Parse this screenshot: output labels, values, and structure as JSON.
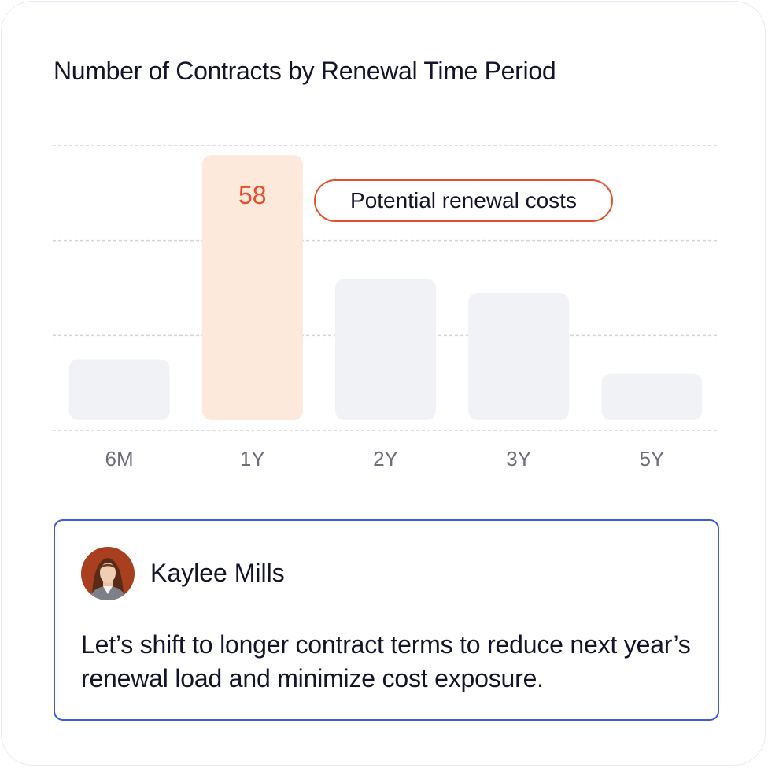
{
  "chart_data": {
    "type": "bar",
    "title": "Number of Contracts by Renewal Time Period",
    "categories": [
      "6M",
      "1Y",
      "2Y",
      "3Y",
      "5Y"
    ],
    "values": [
      15,
      58,
      32,
      29,
      12
    ],
    "data_labels": [
      "",
      "58",
      "",
      "",
      ""
    ],
    "highlight_index": 1,
    "ylim": [
      0,
      60
    ],
    "grid": true,
    "colors": {
      "bar": "#f1f2f6",
      "highlight_bar": "#fde8dc",
      "highlight_label": "#e4502c",
      "grid": "#d3d3d8",
      "tick_label": "#6e6e7a"
    },
    "annotation": "Potential renewal costs"
  },
  "comment": {
    "author": "Kaylee Mills",
    "text": "Let’s shift to longer contract terms to reduce next year’s renewal load and minimize cost exposure.",
    "avatar_icon": "user-avatar-photo"
  },
  "colors": {
    "accent": "#3b5be0",
    "annotation_border": "#e4502c",
    "text": "#13142a"
  }
}
